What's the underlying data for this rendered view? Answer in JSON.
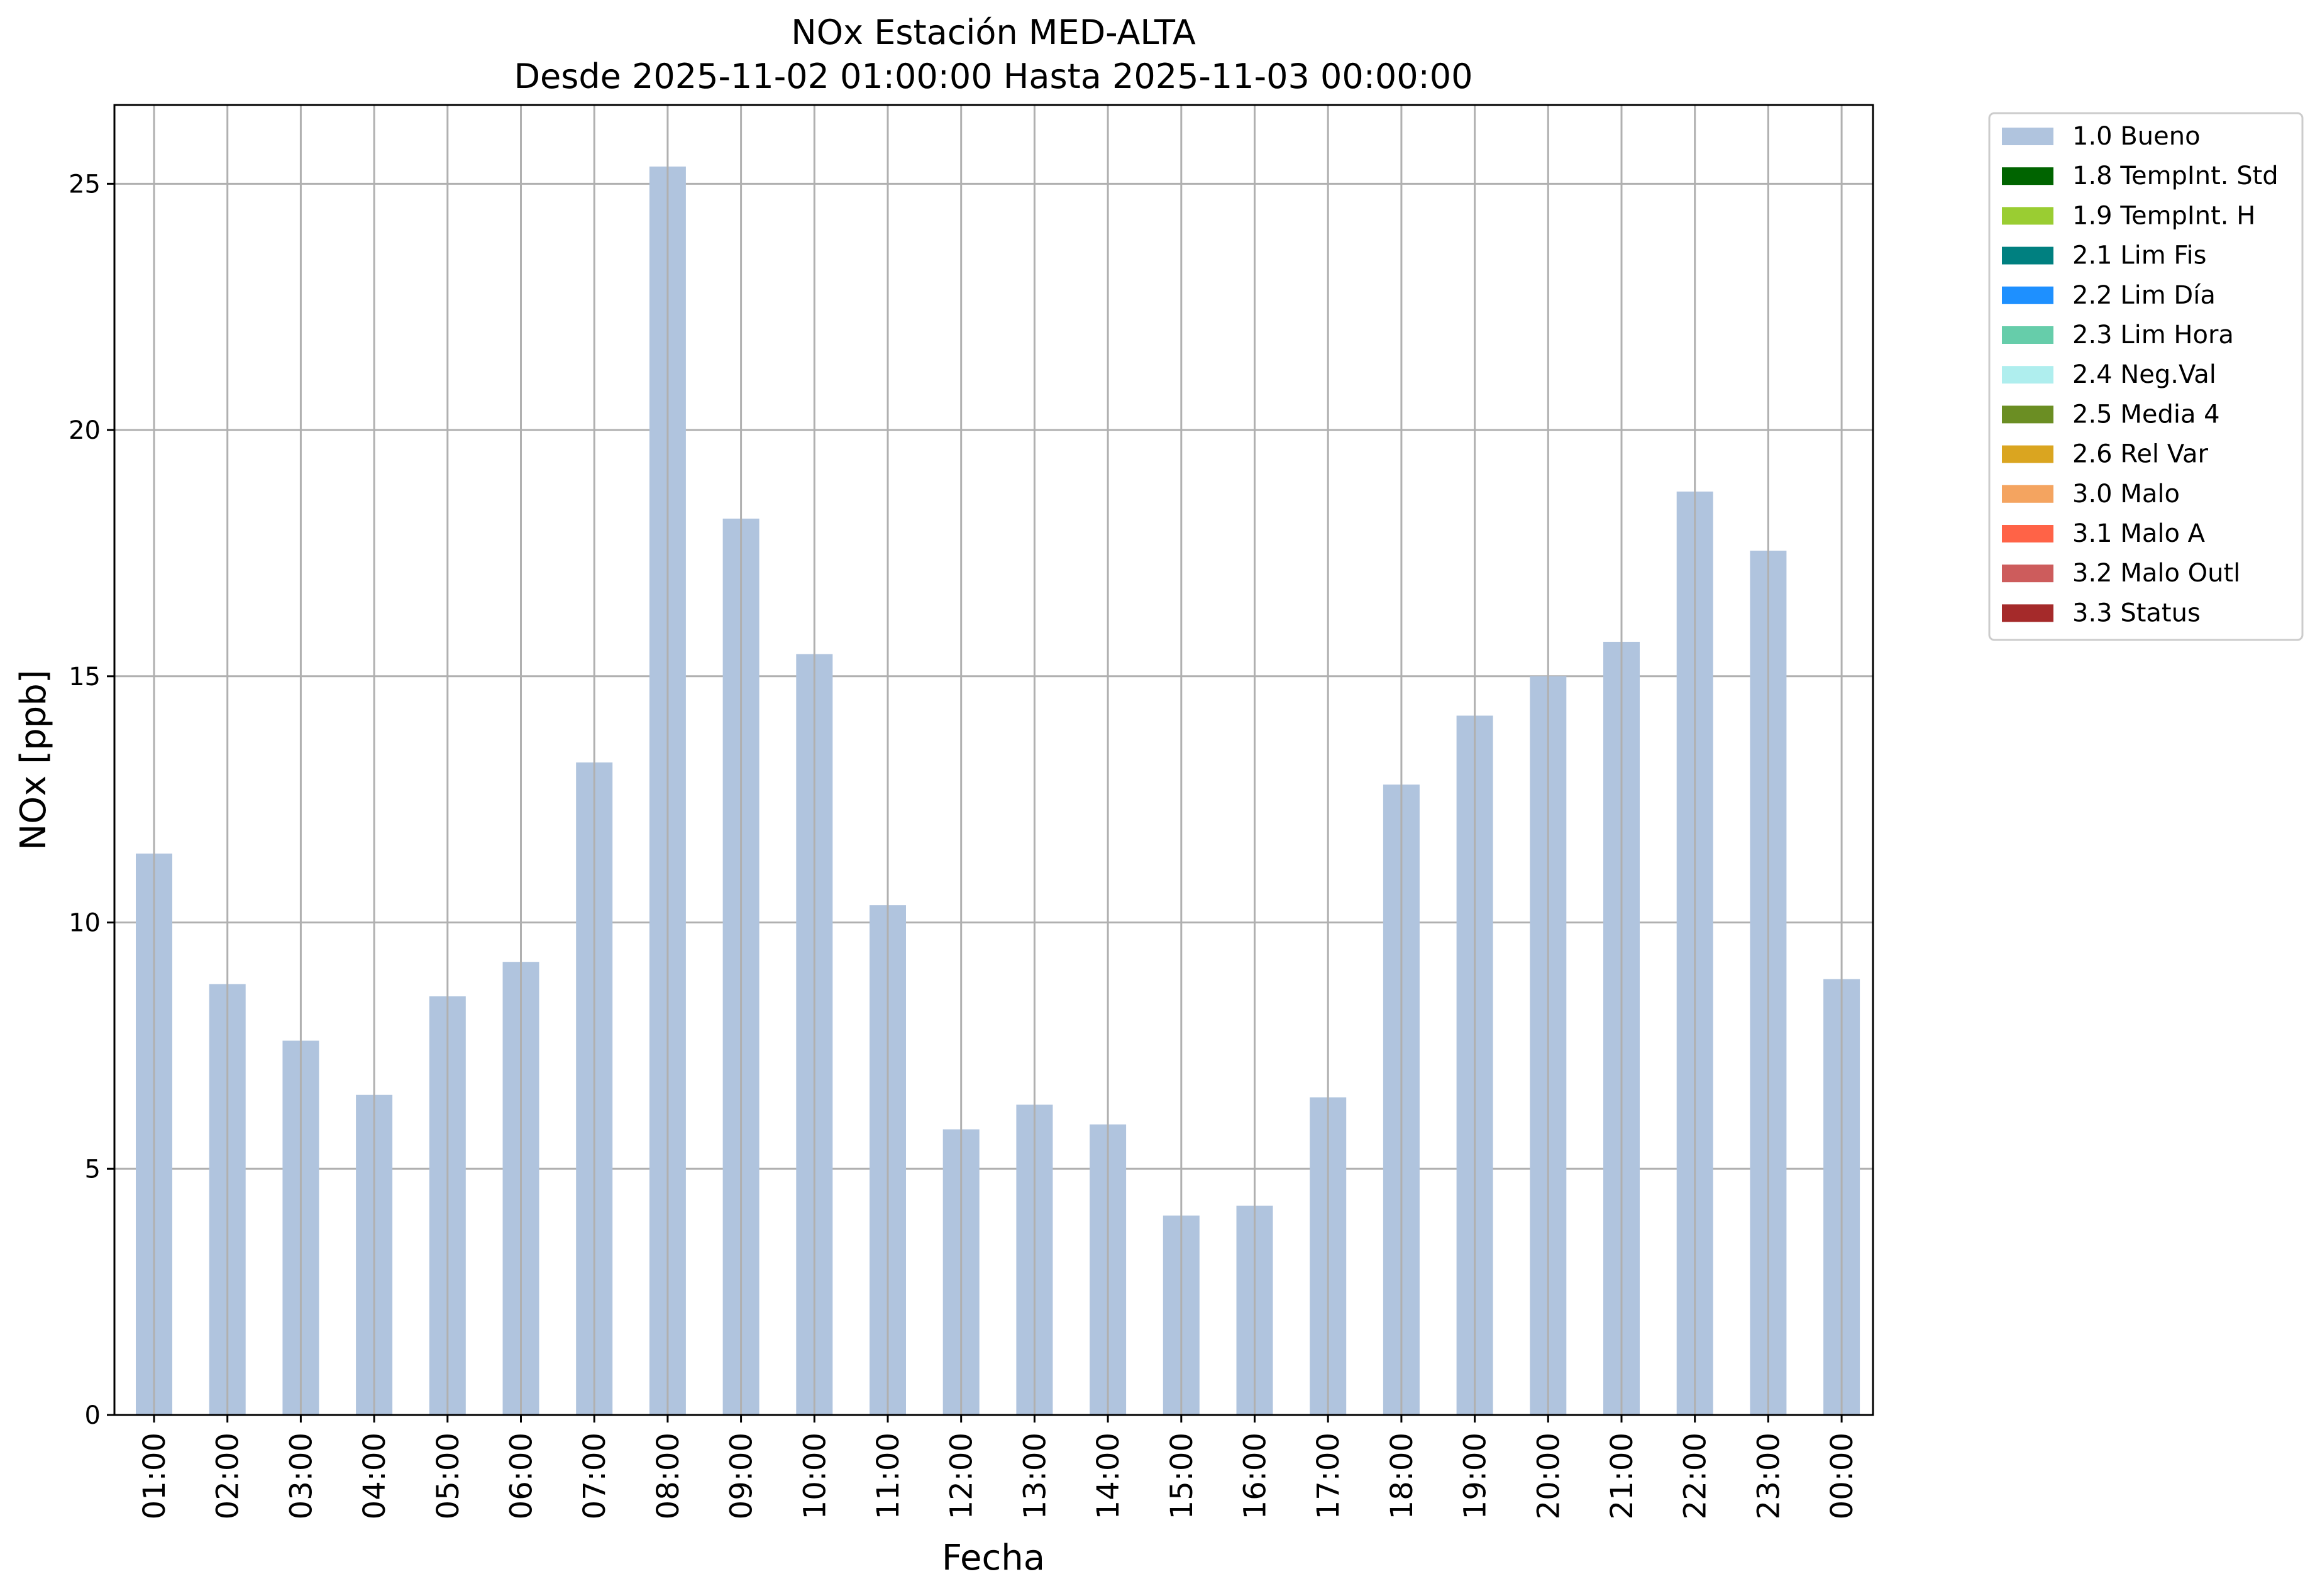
{
  "chart_data": {
    "type": "bar",
    "title": "NOx Estación MED-ALTA",
    "subtitle": "Desde 2025-11-02 01:00:00 Hasta 2025-11-03 00:00:00",
    "xlabel": "Fecha",
    "ylabel": "NOx [ppb]",
    "ylim": [
      0,
      26.6
    ],
    "yticks": [
      0,
      5,
      10,
      15,
      20,
      25
    ],
    "grid": true,
    "legend_placement": "outside-top-right",
    "categories": [
      "01:00",
      "02:00",
      "03:00",
      "04:00",
      "05:00",
      "06:00",
      "07:00",
      "08:00",
      "09:00",
      "10:00",
      "11:00",
      "12:00",
      "13:00",
      "14:00",
      "15:00",
      "16:00",
      "17:00",
      "18:00",
      "19:00",
      "20:00",
      "21:00",
      "22:00",
      "23:00",
      "00:00"
    ],
    "series": [
      {
        "name": "1.0 Bueno",
        "color": "#b0c4de",
        "values": [
          11.4,
          8.75,
          7.6,
          6.5,
          8.5,
          9.2,
          13.25,
          25.35,
          18.2,
          15.45,
          10.35,
          5.8,
          6.3,
          5.9,
          4.05,
          4.25,
          6.45,
          12.8,
          14.2,
          15.0,
          15.7,
          18.75,
          17.55,
          8.85
        ]
      }
    ],
    "legend": [
      {
        "label": "1.0 Bueno",
        "color": "#b0c4de"
      },
      {
        "label": "1.8 TempInt. Std",
        "color": "#006400"
      },
      {
        "label": "1.9 TempInt. H",
        "color": "#9acd32"
      },
      {
        "label": "2.1 Lim Fis",
        "color": "#008080"
      },
      {
        "label": "2.2 Lim Día",
        "color": "#1e90ff"
      },
      {
        "label": "2.3 Lim Hora",
        "color": "#66cdaa"
      },
      {
        "label": "2.4 Neg.Val",
        "color": "#afeeee"
      },
      {
        "label": "2.5 Media 4",
        "color": "#6b8e23"
      },
      {
        "label": "2.6 Rel Var",
        "color": "#daa520"
      },
      {
        "label": "3.0 Malo",
        "color": "#f4a460"
      },
      {
        "label": "3.1 Malo A",
        "color": "#ff6347"
      },
      {
        "label": "3.2 Malo Outl",
        "color": "#cd5c5c"
      },
      {
        "label": "3.3 Status",
        "color": "#a52a2a"
      }
    ]
  }
}
